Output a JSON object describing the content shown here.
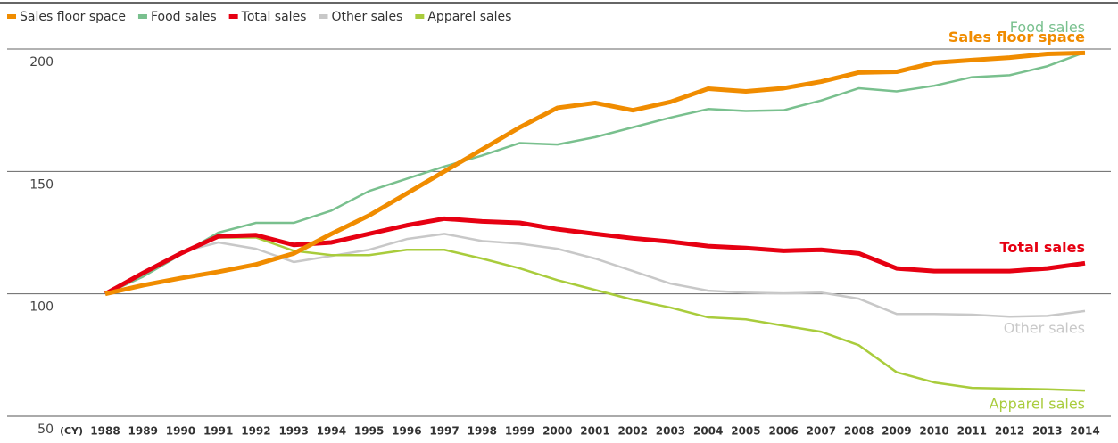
{
  "chart_data": {
    "type": "line",
    "x_label": "(CY)",
    "categories": [
      "1988",
      "1989",
      "1990",
      "1991",
      "1992",
      "1993",
      "1994",
      "1995",
      "1996",
      "1997",
      "1998",
      "1999",
      "2000",
      "2001",
      "2002",
      "2003",
      "2004",
      "2005",
      "2006",
      "2007",
      "2008",
      "2009",
      "2010",
      "2011",
      "2012",
      "2013",
      "2014"
    ],
    "series": [
      {
        "name": "Sales floor space",
        "color": "#f08c00",
        "values": [
          100,
          103.5,
          106.4,
          109,
          112,
          116.5,
          124.5,
          132,
          141,
          150,
          159,
          168,
          176,
          178,
          175,
          178.4,
          183.8,
          182.7,
          184,
          186.7,
          190.4,
          190.7,
          194.4,
          195.5,
          196.5,
          198,
          198.4
        ]
      },
      {
        "name": "Food sales",
        "color": "#79c08e",
        "values": [
          100,
          107,
          116,
          125,
          129,
          129,
          134,
          142,
          147,
          152,
          156.5,
          161.6,
          161,
          164,
          168,
          172,
          175.5,
          174.7,
          175,
          179,
          184,
          182.7,
          185,
          188.5,
          189.3,
          193,
          198.7
        ]
      },
      {
        "name": "Total sales",
        "color": "#e60012",
        "values": [
          100,
          108.5,
          116.5,
          123.5,
          124,
          120,
          121,
          124.5,
          128,
          130.7,
          129.6,
          129,
          126.4,
          124.5,
          122.7,
          121.3,
          119.5,
          118.7,
          117.6,
          118,
          116.5,
          110.4,
          109.3,
          109.3,
          109.3,
          110.4,
          112.5
        ]
      },
      {
        "name": "Other sales",
        "color": "#c8c8c8",
        "values": [
          100,
          109,
          117,
          121,
          118.4,
          113,
          115.5,
          118,
          122.4,
          124.5,
          121.6,
          120.5,
          118.4,
          114.4,
          109.3,
          104.2,
          101.3,
          100.5,
          100.2,
          100.5,
          98,
          91.8,
          91.8,
          91.5,
          90.7,
          91,
          93
        ]
      },
      {
        "name": "Apparel sales",
        "color": "#a9cc3c",
        "values": [
          100,
          108,
          117,
          123,
          123,
          117.6,
          115.8,
          115.8,
          118,
          118,
          114.4,
          110.4,
          105.6,
          101.6,
          97.6,
          94.4,
          90.4,
          89.6,
          87,
          84.5,
          79,
          68,
          63.8,
          61.6,
          61.3,
          61,
          60.5
        ]
      }
    ],
    "ylim": [
      50,
      200
    ],
    "yticks": [
      50,
      100,
      150,
      200
    ],
    "grid": true,
    "legend": "top-left"
  }
}
